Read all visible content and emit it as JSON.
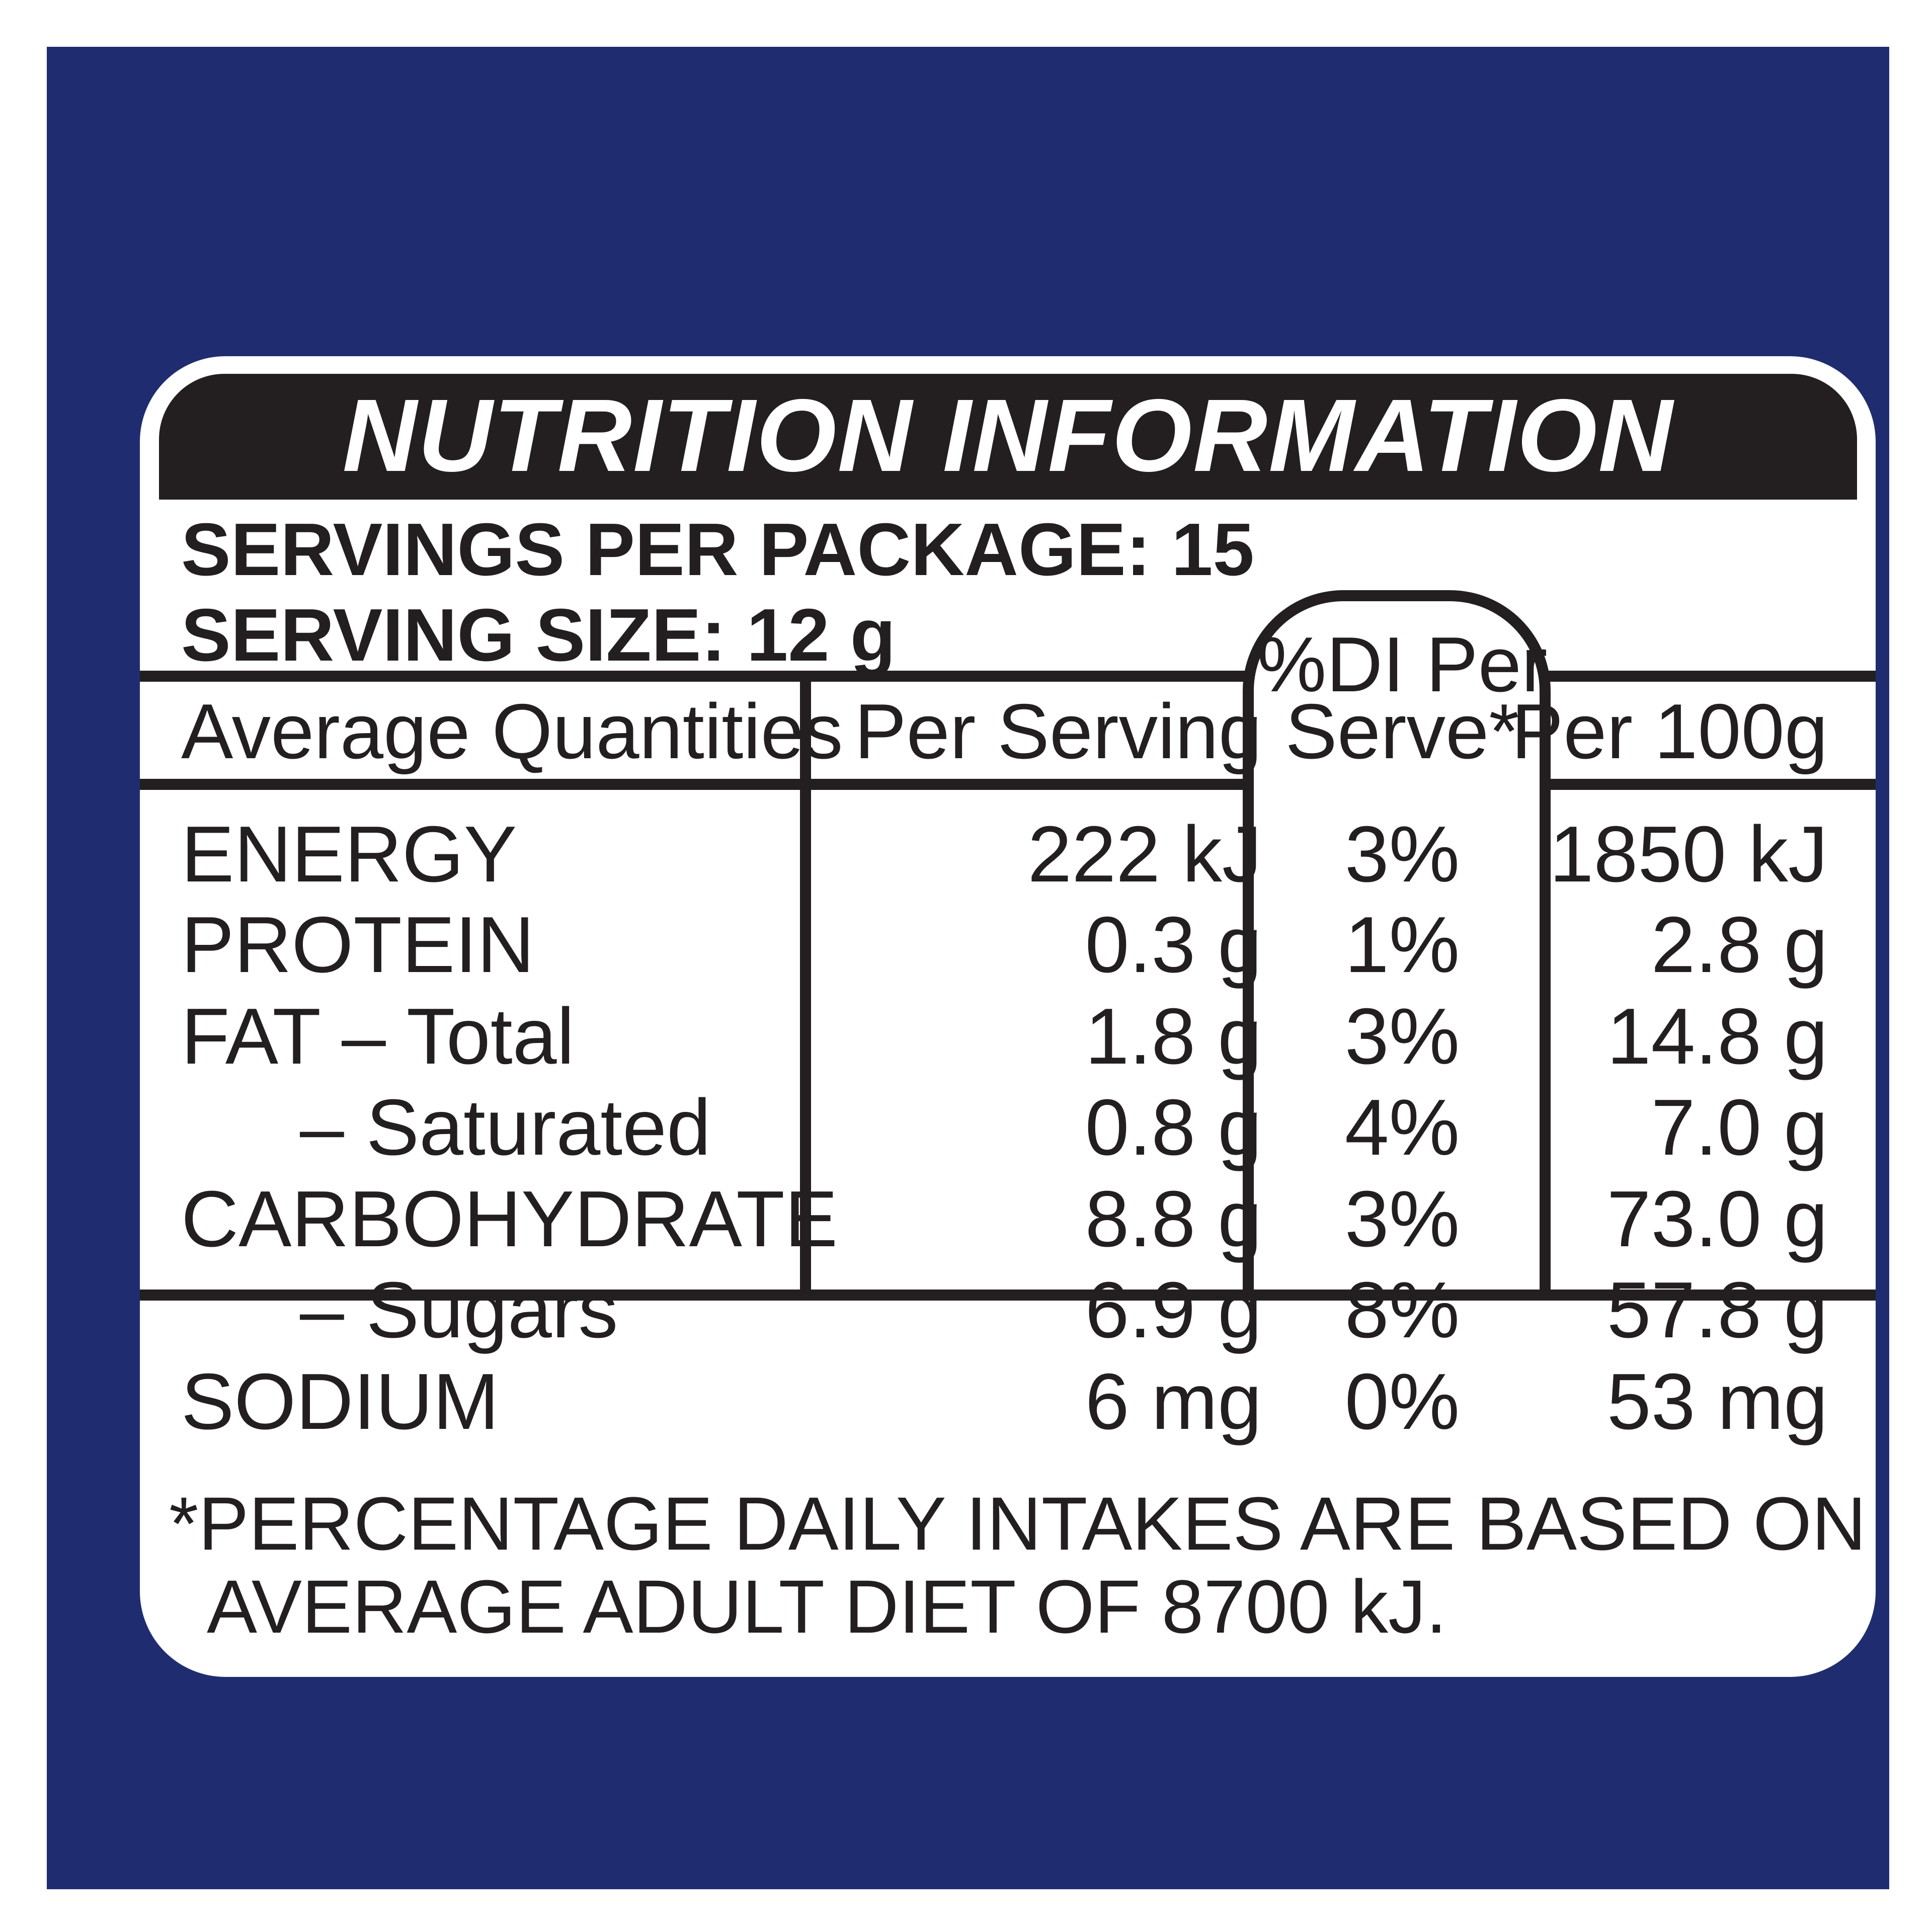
{
  "header": {
    "title": "NUTRITION INFORMATION"
  },
  "servings": {
    "per_package": "SERVINGS PER PACKAGE: 15",
    "size": "SERVING SIZE: 12 g"
  },
  "columns": {
    "quantity": "Average Quantities",
    "per_serving": "Per Serving",
    "di_line1": "%DI Per",
    "di_line2": "Serve*",
    "per_100g": "Per 100g"
  },
  "rows": [
    {
      "label": "ENERGY",
      "per_serving": "222 kJ",
      "di": "3%",
      "per_100g": "1850 kJ"
    },
    {
      "label": "PROTEIN",
      "per_serving": "0.3 g",
      "di": "1%",
      "per_100g": "2.8 g"
    },
    {
      "label": "FAT – Total",
      "per_serving": "1.8 g",
      "di": "3%",
      "per_100g": "14.8 g"
    },
    {
      "label": "– Saturated",
      "per_serving": "0.8 g",
      "di": "4%",
      "per_100g": "7.0 g"
    },
    {
      "label": "CARBOHYDRATE",
      "per_serving": "8.8 g",
      "di": "3%",
      "per_100g": "73.0 g"
    },
    {
      "label": "– Sugars",
      "per_serving": "6.9 g",
      "di": "8%",
      "per_100g": "57.8 g"
    },
    {
      "label": "SODIUM",
      "per_serving": "6 mg",
      "di": "0%",
      "per_100g": "53 mg"
    }
  ],
  "footnote": {
    "line1": "*PERCENTAGE DAILY INTAKES ARE BASED ON AN",
    "line2": "AVERAGE ADULT DIET OF 8700 kJ."
  },
  "colors": {
    "background": "#1f2d70",
    "panel": "#ffffff",
    "ink": "#231f20"
  }
}
